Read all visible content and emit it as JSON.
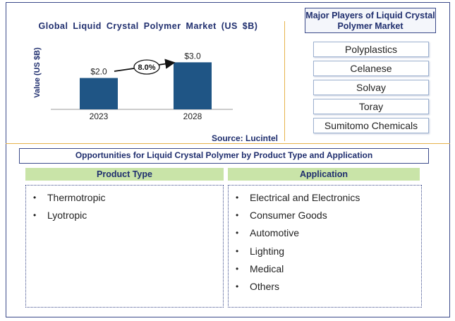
{
  "chart_data": {
    "type": "bar",
    "title": "Global Liquid Crystal Polymer Market (US $B)",
    "ylabel": "Value (US $B)",
    "categories": [
      "2023",
      "2028"
    ],
    "values": [
      2.0,
      3.0
    ],
    "value_labels": [
      "$2.0",
      "$3.0"
    ],
    "ylim": [
      0,
      4.5
    ],
    "cagr_label": "8.0%",
    "bar_color": "#1f5585",
    "source": "Source: Lucintel"
  },
  "players": {
    "title": "Major Players of Liquid Crystal Polymer Market",
    "items": [
      "Polyplastics",
      "Celanese",
      "Solvay",
      "Toray",
      "Sumitomo Chemicals"
    ]
  },
  "opportunities": {
    "title": "Opportunities for Liquid Crystal Polymer by Product Type and Application",
    "product_type": {
      "header": "Product Type",
      "items": [
        "Thermotropic",
        "Lyotropic"
      ]
    },
    "application": {
      "header": "Application",
      "items": [
        "Electrical and Electronics",
        "Consumer Goods",
        "Automotive",
        "Lighting",
        "Medical",
        "Others"
      ]
    }
  }
}
